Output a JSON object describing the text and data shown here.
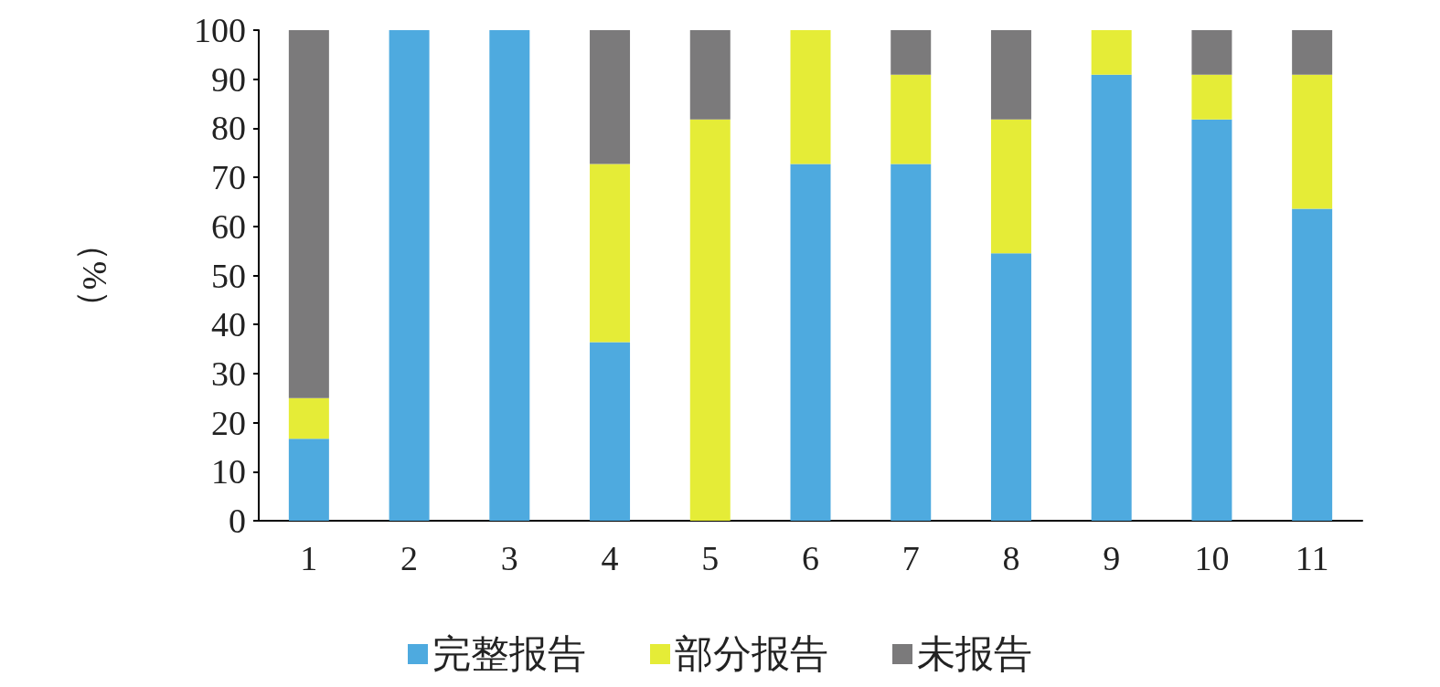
{
  "chart_data": {
    "type": "bar",
    "stacked": true,
    "ylabel": "（%）",
    "categories": [
      "1",
      "2",
      "3",
      "4",
      "5",
      "6",
      "7",
      "8",
      "9",
      "10",
      "11"
    ],
    "series": [
      {
        "name": "完整报告",
        "color": "#4eaadf",
        "values": [
          16.7,
          100,
          100,
          36.4,
          0,
          72.7,
          72.7,
          54.5,
          90.9,
          81.8,
          63.6
        ]
      },
      {
        "name": "部分报告",
        "color": "#e5ec37",
        "values": [
          8.3,
          0,
          0,
          36.3,
          81.8,
          27.3,
          18.2,
          27.3,
          9.1,
          9.1,
          27.3
        ]
      },
      {
        "name": "未报告",
        "color": "#7b7a7b",
        "values": [
          75,
          0,
          0,
          27.3,
          18.2,
          0,
          9.1,
          18.2,
          0,
          9.1,
          9.1
        ]
      }
    ],
    "ylim": [
      0,
      100
    ],
    "yticks": [
      0,
      10,
      20,
      30,
      40,
      50,
      60,
      70,
      80,
      90,
      100
    ],
    "grid": false,
    "legend": "bottom"
  }
}
